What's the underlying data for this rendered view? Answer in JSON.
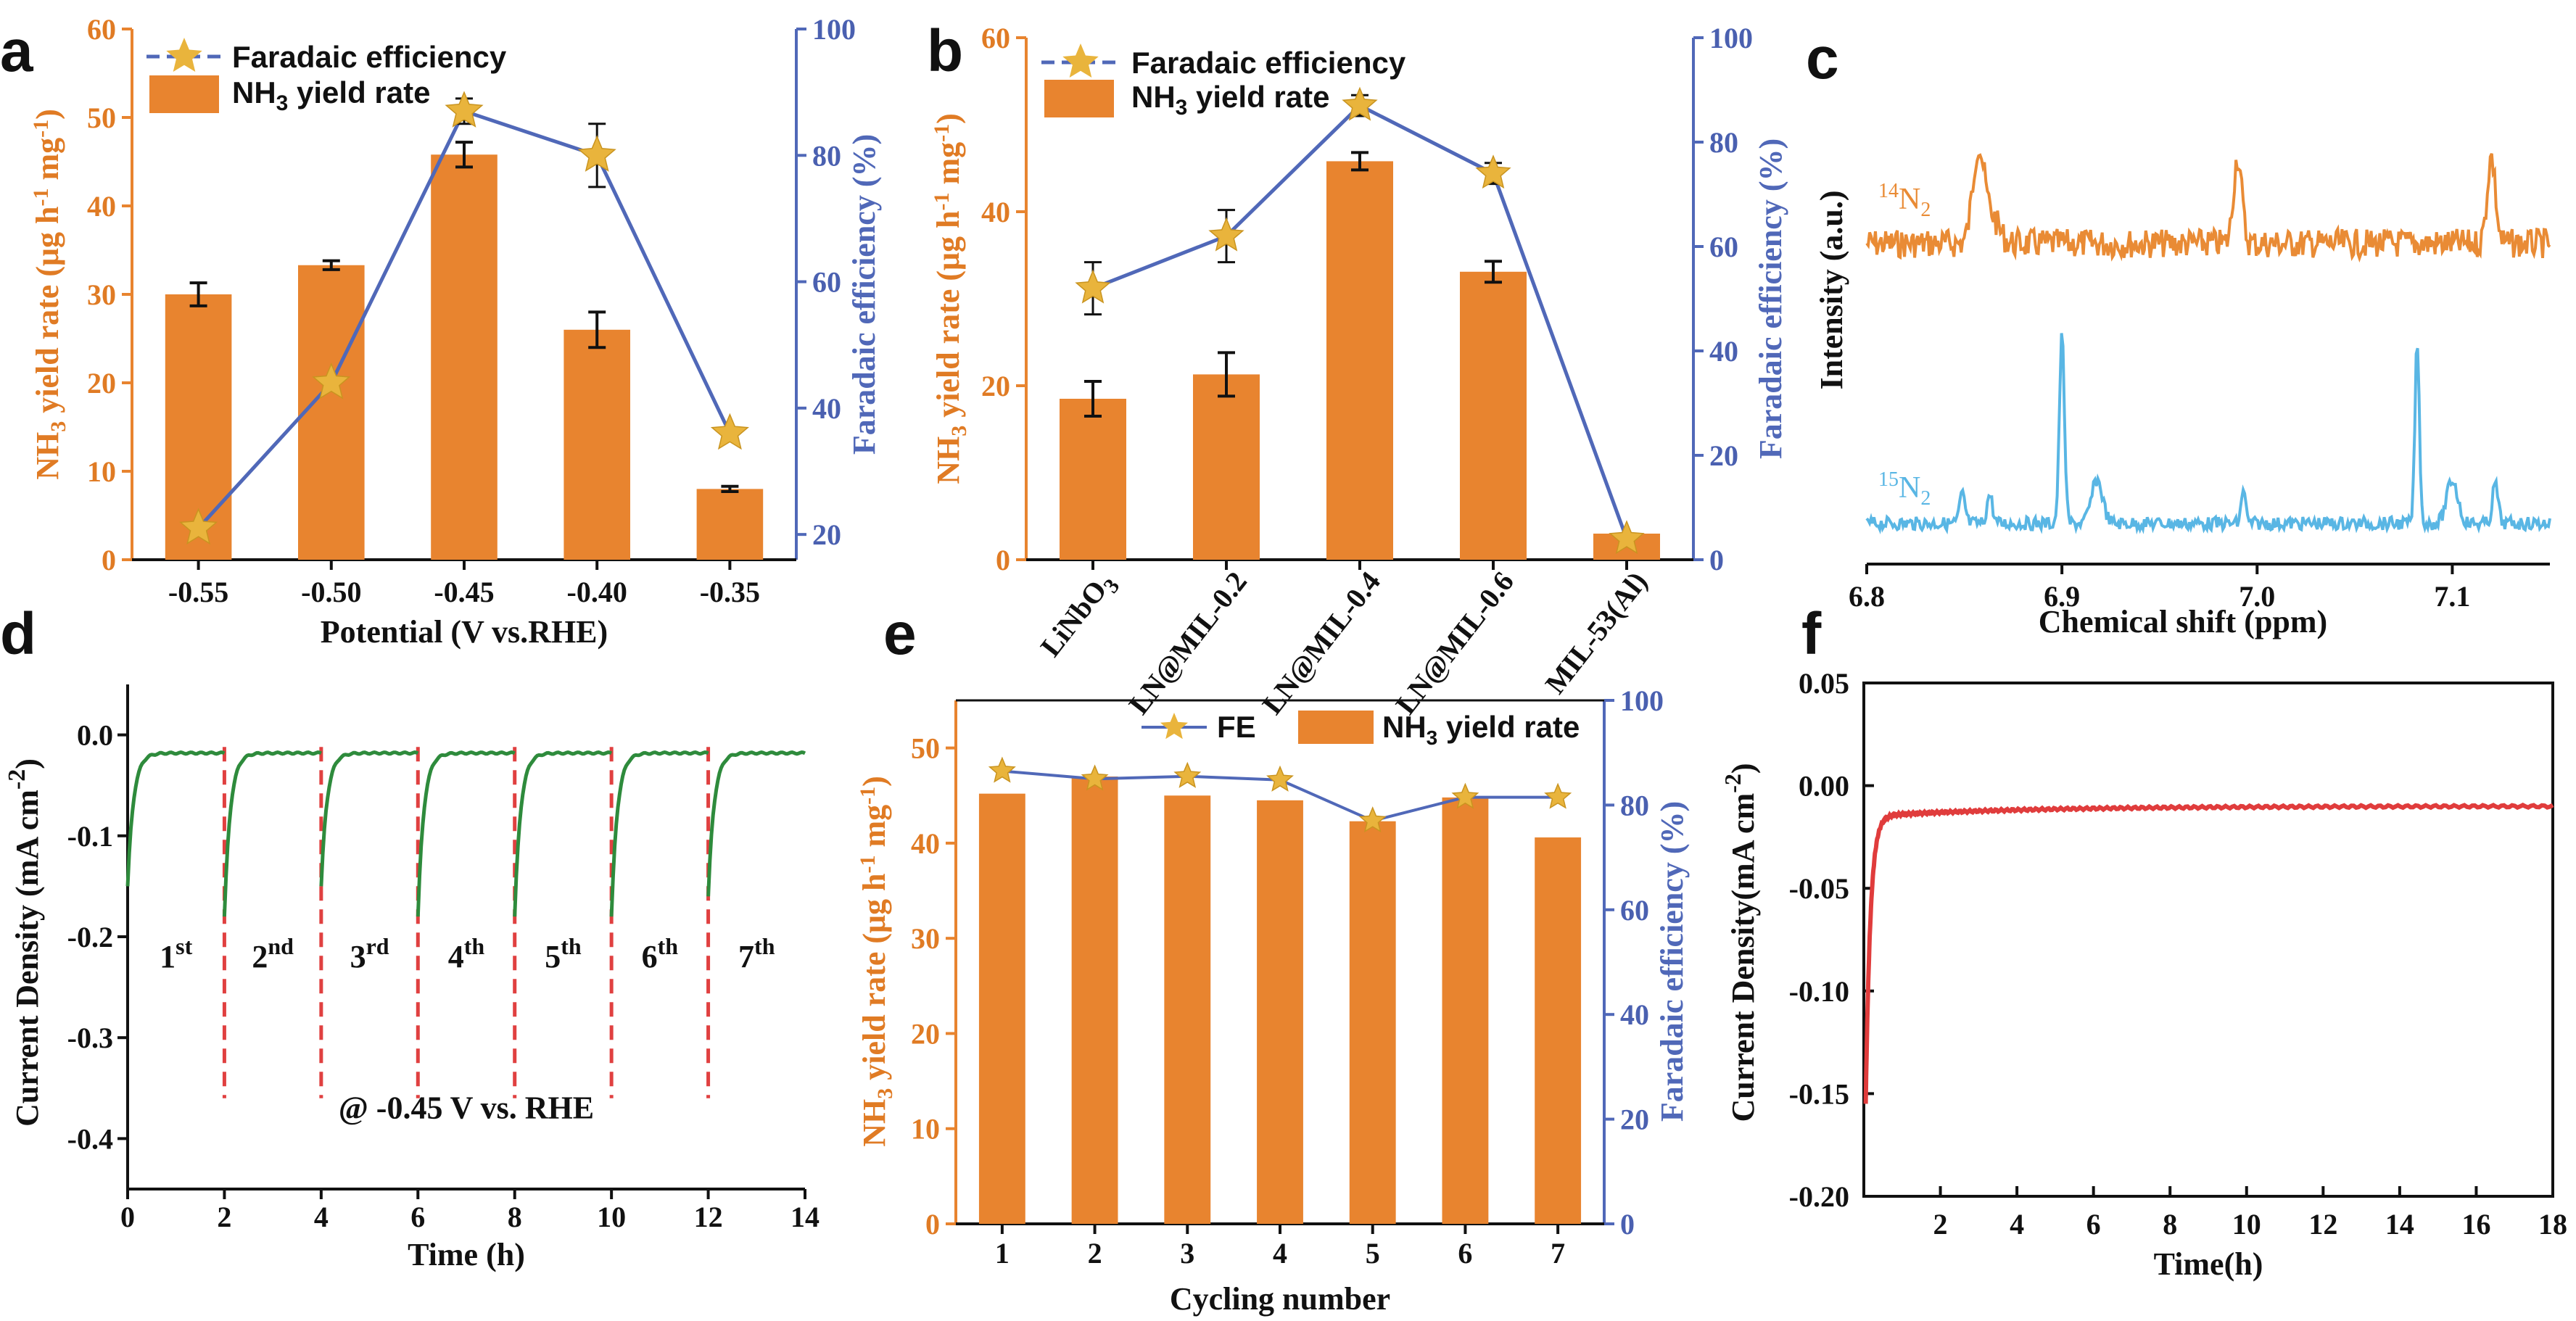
{
  "colors": {
    "orange": "#e8842f",
    "orange_text": "#e07b24",
    "blue": "#5068b8",
    "star": "#e9b43c",
    "green": "#2e8b3c",
    "red_dash": "#e04040",
    "nmr_orange": "#e98b35",
    "nmr_blue": "#59b6e4",
    "stability_red": "#e03c3c"
  },
  "panels": {
    "a": "a",
    "b": "b",
    "c": "c",
    "d": "d",
    "e": "e",
    "f": "f"
  },
  "chart_data": [
    {
      "id": "a",
      "type": "bar+line",
      "categories": [
        "-0.55",
        "-0.50",
        "-0.45",
        "-0.40",
        "-0.35"
      ],
      "bar_series": {
        "name_prefix": "NH",
        "name_sub": "3",
        "name_suffix": " yield rate",
        "values": [
          30,
          33.3,
          45.8,
          26,
          8
        ],
        "errors": [
          1.3,
          0.5,
          1.4,
          2,
          0.3
        ]
      },
      "line_series": {
        "name": "Faradaic efficiency",
        "values": [
          21,
          44,
          87,
          80,
          36
        ],
        "errors": [
          0,
          0,
          2,
          5,
          0
        ]
      },
      "xlabel": "Potential (V vs.RHE)",
      "ylabel_left": "NH3 yield rate (μg h-1 mg-1)",
      "ylim_left": [
        0,
        60
      ],
      "yticks_left": [
        "0",
        "10",
        "20",
        "30",
        "40",
        "50",
        "60"
      ],
      "ylabel_right": "Faradaic efficiency (%)",
      "ylim_right": [
        16,
        100
      ],
      "yticks_right": [
        "20",
        "40",
        "60",
        "80",
        "100"
      ]
    },
    {
      "id": "b",
      "type": "bar+line",
      "categories": [
        "LiNbO3",
        "LN@MIL-0.2",
        "LN@MIL-0.4",
        "LN@MIL-0.6",
        "MIL-53(Al)"
      ],
      "bar_series": {
        "name_prefix": "NH",
        "name_sub": "3",
        "name_suffix": " yield rate",
        "values": [
          18.5,
          21.3,
          45.8,
          33.1,
          3
        ],
        "errors": [
          2,
          2.5,
          1,
          1.2,
          0
        ]
      },
      "line_series": {
        "name": "Faradaic efficiency",
        "values": [
          52,
          62,
          87,
          74,
          4
        ],
        "errors": [
          5,
          5,
          2,
          2,
          0
        ]
      },
      "xlabel": "",
      "ylabel_left": "NH3 yield rate (μg h-1 mg-1)",
      "ylim_left": [
        0,
        60
      ],
      "yticks_left": [
        "0",
        "20",
        "40",
        "60"
      ],
      "ylabel_right": "Faradaic efficiency (%)",
      "ylim_right": [
        0,
        100
      ],
      "yticks_right": [
        "0",
        "20",
        "40",
        "60",
        "80",
        "100"
      ]
    },
    {
      "id": "c",
      "type": "line",
      "series": [
        {
          "name": "14N2",
          "label_sup": "14",
          "label_main": "N",
          "label_sub": "2"
        },
        {
          "name": "15N2",
          "label_sup": "15",
          "label_main": "N",
          "label_sub": "2"
        }
      ],
      "peaks_14N2": [
        6.857,
        6.99,
        7.12
      ],
      "peaks_15N2": [
        6.849,
        6.863,
        6.9,
        6.918,
        6.993,
        7.082,
        7.1,
        7.122
      ],
      "xlabel": "Chemical shift (ppm)",
      "ylabel": "Intensity (a.u.)",
      "xlim": [
        6.8,
        7.15
      ],
      "xticks": [
        "6.8",
        "6.9",
        "7.0",
        "7.1"
      ]
    },
    {
      "id": "d",
      "type": "line",
      "series": [
        {
          "name": "Current density",
          "color": "#2e8b3c"
        }
      ],
      "cycle_starts": [
        0,
        2,
        4,
        6,
        8,
        10,
        12
      ],
      "start_values": [
        -0.15,
        -0.18,
        -0.15,
        -0.18,
        -0.18,
        -0.18,
        -0.16
      ],
      "steady_value": -0.018,
      "cycle_labels": [
        {
          "n": "1",
          "sup": "st"
        },
        {
          "n": "2",
          "sup": "nd"
        },
        {
          "n": "3",
          "sup": "rd"
        },
        {
          "n": "4",
          "sup": "th"
        },
        {
          "n": "5",
          "sup": "th"
        },
        {
          "n": "6",
          "sup": "th"
        },
        {
          "n": "7",
          "sup": "th"
        }
      ],
      "annotation": "@ -0.45 V vs. RHE",
      "xlabel": "Time (h)",
      "ylabel": "Current Density (mA cm-2)",
      "xlim": [
        0,
        14
      ],
      "ylim": [
        -0.45,
        0.05
      ],
      "xticks": [
        "0",
        "2",
        "4",
        "6",
        "8",
        "10",
        "12",
        "14"
      ],
      "yticks": [
        "0.0",
        "-0.1",
        "-0.2",
        "-0.3",
        "-0.4"
      ]
    },
    {
      "id": "e",
      "type": "bar+line",
      "categories": [
        "1",
        "2",
        "3",
        "4",
        "5",
        "6",
        "7"
      ],
      "bar_series": {
        "name_prefix": "NH",
        "name_sub": "3",
        "name_suffix": " yield rate",
        "values": [
          45.2,
          47,
          45,
          44.5,
          42.3,
          44.8,
          40.6
        ]
      },
      "line_series": {
        "name": "FE",
        "values": [
          86.5,
          85,
          85.5,
          84.8,
          77,
          81.5,
          81.5
        ]
      },
      "xlabel": "Cycling number",
      "ylabel_left": "NH3 yield rate (μg h-1 mg-1)",
      "ylim_left": [
        0,
        55
      ],
      "yticks_left": [
        "0",
        "10",
        "20",
        "30",
        "40",
        "50"
      ],
      "ylabel_right": "Faradaic efficiency (%)",
      "ylim_right": [
        0,
        100
      ],
      "yticks_right": [
        "0",
        "20",
        "40",
        "60",
        "80",
        "100"
      ]
    },
    {
      "id": "f",
      "type": "line",
      "series": [
        {
          "name": "Current density",
          "color": "#e03c3c"
        }
      ],
      "start_value": -0.15,
      "steady_value": -0.01,
      "xlabel": "Time(h)",
      "ylabel": "Current Density(mA cm-2)",
      "xlim": [
        0,
        18
      ],
      "ylim": [
        -0.2,
        0.05
      ],
      "xticks": [
        "2",
        "4",
        "6",
        "8",
        "10",
        "12",
        "14",
        "16",
        "18"
      ],
      "yticks": [
        "0.05",
        "0.00",
        "-0.05",
        "-0.10",
        "-0.15",
        "-0.20"
      ]
    }
  ]
}
